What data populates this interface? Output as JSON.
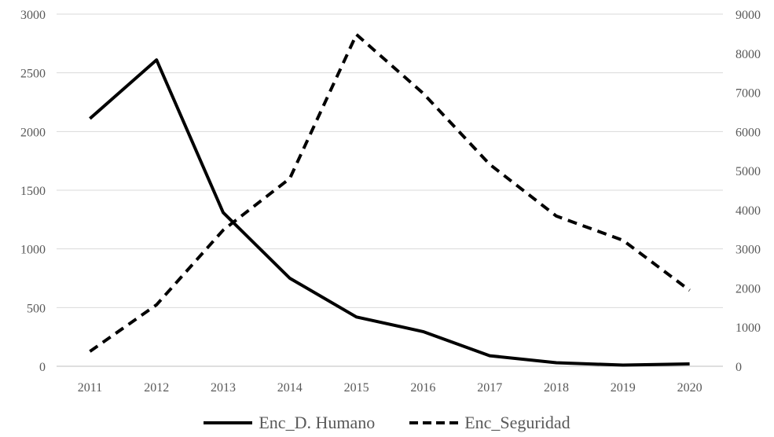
{
  "chart_data": {
    "type": "line",
    "categories": [
      "2011",
      "2012",
      "2013",
      "2014",
      "2015",
      "2016",
      "2017",
      "2018",
      "2019",
      "2020"
    ],
    "series": [
      {
        "name": "Enc_D. Humano",
        "axis": "left",
        "style": "solid",
        "values": [
          2110,
          2610,
          1310,
          750,
          420,
          295,
          90,
          30,
          10,
          20
        ]
      },
      {
        "name": "Enc_Seguridad",
        "axis": "right",
        "style": "dashed",
        "values": [
          380,
          1570,
          3480,
          4800,
          8480,
          6980,
          5160,
          3840,
          3220,
          1940
        ]
      }
    ],
    "y_left": {
      "ticks": [
        "0",
        "500",
        "1000",
        "1500",
        "2000",
        "2500",
        "3000"
      ],
      "lim": [
        0,
        3000
      ]
    },
    "y_right": {
      "ticks": [
        "0",
        "1000",
        "2000",
        "3000",
        "4000",
        "5000",
        "6000",
        "7000",
        "8000",
        "9000"
      ],
      "lim": [
        0,
        9000
      ]
    },
    "grid": true,
    "legend_position": "bottom",
    "colors": {
      "line": "#000000",
      "grid": "#d9d9d9",
      "text": "#595959"
    }
  }
}
